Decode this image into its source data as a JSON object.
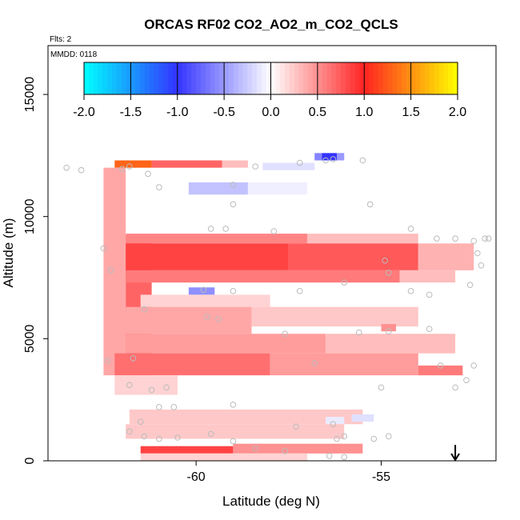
{
  "chart_data": {
    "type": "heatmap",
    "title": "ORCAS RF02 CO2_AO2_m_CO2_QCLS",
    "notes": [
      "Flts: 2",
      "MMDD: 0118"
    ],
    "xlabel": "Latitude (deg N)",
    "ylabel": "Altitude (m)",
    "xlim": [
      -64,
      -51.9
    ],
    "ylim": [
      0,
      17000
    ],
    "xticks": [
      -60,
      -55
    ],
    "yticks": [
      0,
      5000,
      10000,
      15000
    ],
    "colorbar": {
      "ticks": [
        -2.0,
        -1.5,
        -1.0,
        -0.5,
        0.0,
        0.5,
        1.0,
        1.5,
        2.0
      ],
      "tick_labels": [
        "-2.0",
        "-1.5",
        "-1.0",
        "-0.5",
        "0.0",
        "0.5",
        "1.0",
        "1.5",
        "2.0"
      ],
      "range": [
        -2,
        2
      ],
      "colors": {
        "-2": "#00ffff",
        "-1": "#3333ff",
        "0": "#ffffff",
        "1": "#ff2222",
        "2": "#ffff00"
      }
    },
    "arrow_marker": {
      "latitude": -53.0,
      "altitude": 500,
      "direction": "down"
    },
    "cells": [
      {
        "lat": [
          -62.2,
          -61.2
        ],
        "alt": [
          12000,
          12300
        ],
        "value": 1.3
      },
      {
        "lat": [
          -61.2,
          -59.3
        ],
        "alt": [
          12000,
          12300
        ],
        "value": 0.7
      },
      {
        "lat": [
          -59.3,
          -58.6
        ],
        "alt": [
          12000,
          12300
        ],
        "value": 0.3
      },
      {
        "lat": [
          -56.8,
          -56.6
        ],
        "alt": [
          12300,
          12600
        ],
        "value": -0.6
      },
      {
        "lat": [
          -56.6,
          -56.2
        ],
        "alt": [
          12300,
          12600
        ],
        "value": -1.0
      },
      {
        "lat": [
          -56.2,
          -56.0
        ],
        "alt": [
          12300,
          12600
        ],
        "value": -0.5
      },
      {
        "lat": [
          -60.2,
          -58.6
        ],
        "alt": [
          10900,
          11400
        ],
        "value": -0.3
      },
      {
        "lat": [
          -58.6,
          -57.0
        ],
        "alt": [
          10900,
          11400
        ],
        "value": -0.08
      },
      {
        "lat": [
          -58.2,
          -56.8
        ],
        "alt": [
          11900,
          12200
        ],
        "value": -0.15
      },
      {
        "lat": [
          -62.5,
          -61.9
        ],
        "alt": [
          3500,
          12000
        ],
        "value": 0.4
      },
      {
        "lat": [
          -61.9,
          -61.2
        ],
        "alt": [
          3500,
          9200
        ],
        "value": 0.7
      },
      {
        "lat": [
          -61.9,
          -57.0
        ],
        "alt": [
          8900,
          9300
        ],
        "value": 0.55
      },
      {
        "lat": [
          -57.0,
          -54.0
        ],
        "alt": [
          8900,
          9300
        ],
        "value": 0.3
      },
      {
        "lat": [
          -61.9,
          -57.5
        ],
        "alt": [
          7800,
          8900
        ],
        "value": 0.85
      },
      {
        "lat": [
          -57.5,
          -54.0
        ],
        "alt": [
          7800,
          8900
        ],
        "value": 0.75
      },
      {
        "lat": [
          -54.0,
          -52.5
        ],
        "alt": [
          7800,
          8900
        ],
        "value": 0.35
      },
      {
        "lat": [
          -61.9,
          -54.5
        ],
        "alt": [
          7300,
          7800
        ],
        "value": 0.6
      },
      {
        "lat": [
          -54.5,
          -53.0
        ],
        "alt": [
          7300,
          7800
        ],
        "value": 0.3
      },
      {
        "lat": [
          -60.2,
          -59.5
        ],
        "alt": [
          6800,
          7100
        ],
        "value": -0.55
      },
      {
        "lat": [
          -61.5,
          -58.0
        ],
        "alt": [
          6300,
          6800
        ],
        "value": 0.2
      },
      {
        "lat": [
          -61.9,
          -58.5
        ],
        "alt": [
          5200,
          6300
        ],
        "value": 0.4
      },
      {
        "lat": [
          -58.5,
          -54.0
        ],
        "alt": [
          5500,
          6300
        ],
        "value": 0.25
      },
      {
        "lat": [
          -61.9,
          -56.5
        ],
        "alt": [
          4400,
          5200
        ],
        "value": 0.45
      },
      {
        "lat": [
          -56.5,
          -53.0
        ],
        "alt": [
          4400,
          5200
        ],
        "value": 0.3
      },
      {
        "lat": [
          -55.0,
          -54.6
        ],
        "alt": [
          5300,
          5600
        ],
        "value": 0.5
      },
      {
        "lat": [
          -62.2,
          -58.0
        ],
        "alt": [
          3500,
          4400
        ],
        "value": 0.65
      },
      {
        "lat": [
          -58.0,
          -54.0
        ],
        "alt": [
          3500,
          4400
        ],
        "value": 0.45
      },
      {
        "lat": [
          -54.0,
          -52.8
        ],
        "alt": [
          3500,
          3900
        ],
        "value": 0.6
      },
      {
        "lat": [
          -62.2,
          -60.5
        ],
        "alt": [
          2700,
          3500
        ],
        "value": 0.2
      },
      {
        "lat": [
          -61.8,
          -55.5
        ],
        "alt": [
          1500,
          2100
        ],
        "value": 0.25
      },
      {
        "lat": [
          -56.5,
          -56.0
        ],
        "alt": [
          1500,
          1800
        ],
        "value": -0.1
      },
      {
        "lat": [
          -55.8,
          -55.2
        ],
        "alt": [
          1600,
          1900
        ],
        "value": -0.15
      },
      {
        "lat": [
          -61.9,
          -56.0
        ],
        "alt": [
          900,
          1500
        ],
        "value": 0.25
      },
      {
        "lat": [
          -61.5,
          -59.0
        ],
        "alt": [
          300,
          600
        ],
        "value": 0.85
      },
      {
        "lat": [
          -59.0,
          -55.5
        ],
        "alt": [
          300,
          700
        ],
        "value": 0.5
      },
      {
        "lat": [
          -61.5,
          -57.0
        ],
        "alt": [
          0,
          300
        ],
        "value": 0.2
      }
    ],
    "sample_points": [
      [
        -63.5,
        12000
      ],
      [
        -63.1,
        11900
      ],
      [
        -62.0,
        11950
      ],
      [
        -61.8,
        12050
      ],
      [
        -61.3,
        11750
      ],
      [
        -61.0,
        11200
      ],
      [
        -58.4,
        12050
      ],
      [
        -57.2,
        12200
      ],
      [
        -56.5,
        12300
      ],
      [
        -56.3,
        12350
      ],
      [
        -55.5,
        12300
      ],
      [
        -59.0,
        11300
      ],
      [
        -59.0,
        10500
      ],
      [
        -59.2,
        9500
      ],
      [
        -59.6,
        9500
      ],
      [
        -57.9,
        9400
      ],
      [
        -55.3,
        10500
      ],
      [
        -54.2,
        9500
      ],
      [
        -53.5,
        9100
      ],
      [
        -53.0,
        9100
      ],
      [
        -52.5,
        9000
      ],
      [
        -52.2,
        9100
      ],
      [
        -52.1,
        9100
      ],
      [
        -52.4,
        8500
      ],
      [
        -52.3,
        8000
      ],
      [
        -52.6,
        7200
      ],
      [
        -54.9,
        8200
      ],
      [
        -54.8,
        7700
      ],
      [
        -56.0,
        7300
      ],
      [
        -54.2,
        6950
      ],
      [
        -53.7,
        6800
      ],
      [
        -57.2,
        6950
      ],
      [
        -59.0,
        6950
      ],
      [
        -59.8,
        7000
      ],
      [
        -61.4,
        6200
      ],
      [
        -59.7,
        5900
      ],
      [
        -59.4,
        5800
      ],
      [
        -57.6,
        5200
      ],
      [
        -56.8,
        4000
      ],
      [
        -55.6,
        5250
      ],
      [
        -54.8,
        5300
      ],
      [
        -53.7,
        5400
      ],
      [
        -53.4,
        3900
      ],
      [
        -53.0,
        3000
      ],
      [
        -52.7,
        3300
      ],
      [
        -52.5,
        3900
      ],
      [
        -55.0,
        3000
      ],
      [
        -61.8,
        3100
      ],
      [
        -61.2,
        2900
      ],
      [
        -60.8,
        3000
      ],
      [
        -61.0,
        2200
      ],
      [
        -60.6,
        2200
      ],
      [
        -61.5,
        1600
      ],
      [
        -59.0,
        2300
      ],
      [
        -57.3,
        1400
      ],
      [
        -56.3,
        1500
      ],
      [
        -56.2,
        900
      ],
      [
        -56.0,
        1000
      ],
      [
        -55.2,
        900
      ],
      [
        -54.8,
        1000
      ],
      [
        -61.8,
        1200
      ],
      [
        -61.4,
        1000
      ],
      [
        -61.0,
        900
      ],
      [
        -60.5,
        950
      ],
      [
        -59.6,
        1100
      ],
      [
        -59.0,
        800
      ],
      [
        -58.4,
        500
      ],
      [
        -57.6,
        400
      ],
      [
        -56.4,
        200
      ],
      [
        -56.0,
        150
      ],
      [
        -62.4,
        4100
      ],
      [
        -62.5,
        8700
      ],
      [
        -62.3,
        7800
      ],
      [
        -61.7,
        4200
      ]
    ]
  }
}
